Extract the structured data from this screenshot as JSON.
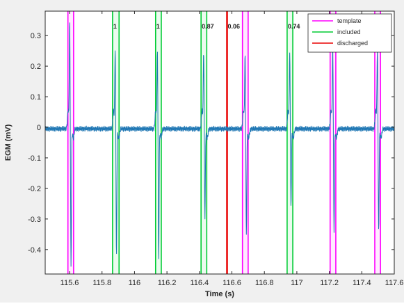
{
  "chart_data": {
    "type": "line",
    "xlabel": "Time (s)",
    "ylabel": "EGM (mV)",
    "xlim": [
      115.45,
      117.6
    ],
    "ylim": [
      -0.48,
      0.38
    ],
    "x_ticks": [
      115.6,
      115.8,
      116.0,
      116.2,
      116.4,
      116.6,
      116.8,
      117.0,
      117.2,
      117.4,
      117.6
    ],
    "x_tick_labels": [
      "115.6",
      "115.8",
      "116",
      "116.2",
      "116.4",
      "116.6",
      "116.8",
      "117",
      "117.2",
      "117.4",
      "117.6"
    ],
    "y_ticks": [
      0.3,
      0.2,
      0.1,
      0,
      -0.1,
      -0.2,
      -0.3,
      -0.4
    ],
    "y_tick_labels": [
      "0.3",
      "0.2",
      "0.1",
      "0",
      "-0.1",
      "-0.2",
      "-0.3",
      "-0.4"
    ],
    "grid": false,
    "legend": {
      "position": "top-right",
      "entries": [
        {
          "label": "template",
          "color": "#ff00ff"
        },
        {
          "label": "included",
          "color": "#00cc33"
        },
        {
          "label": "discharged",
          "color": "#e80000"
        }
      ]
    },
    "series": [
      {
        "name": "",
        "color": "#1f77b4",
        "baseline": -0.005,
        "beats": [
          {
            "t": 115.605,
            "peak": 0.35,
            "trough": -0.45
          },
          {
            "t": 115.885,
            "peak": 0.26,
            "trough": -0.42
          },
          {
            "t": 116.145,
            "peak": 0.25,
            "trough": -0.43
          },
          {
            "t": 116.43,
            "peak": 0.25,
            "trough": -0.29
          },
          {
            "t": 116.685,
            "peak": 0.24,
            "trough": -0.35
          },
          {
            "t": 116.96,
            "peak": 0.25,
            "trough": -0.26
          },
          {
            "t": 117.225,
            "peak": 0.26,
            "trough": -0.34
          },
          {
            "t": 117.5,
            "peak": 0.26,
            "trough": -0.34
          }
        ]
      }
    ],
    "marker_windows": [
      {
        "kind": "template",
        "start": 115.59,
        "end": 115.625,
        "label": ""
      },
      {
        "kind": "included",
        "start": 115.865,
        "end": 115.905,
        "label": "1"
      },
      {
        "kind": "included",
        "start": 116.13,
        "end": 116.165,
        "label": "1"
      },
      {
        "kind": "included",
        "start": 116.41,
        "end": 116.445,
        "label": "0.87"
      },
      {
        "kind": "discharged",
        "start": 116.57,
        "end": 116.57,
        "label": "0.06"
      },
      {
        "kind": "template",
        "start": 116.665,
        "end": 116.7,
        "label": ""
      },
      {
        "kind": "included",
        "start": 116.94,
        "end": 116.975,
        "label": "0.74"
      },
      {
        "kind": "template",
        "start": 117.205,
        "end": 117.24,
        "label": ""
      },
      {
        "kind": "template",
        "start": 117.48,
        "end": 117.515,
        "label": ""
      }
    ]
  }
}
